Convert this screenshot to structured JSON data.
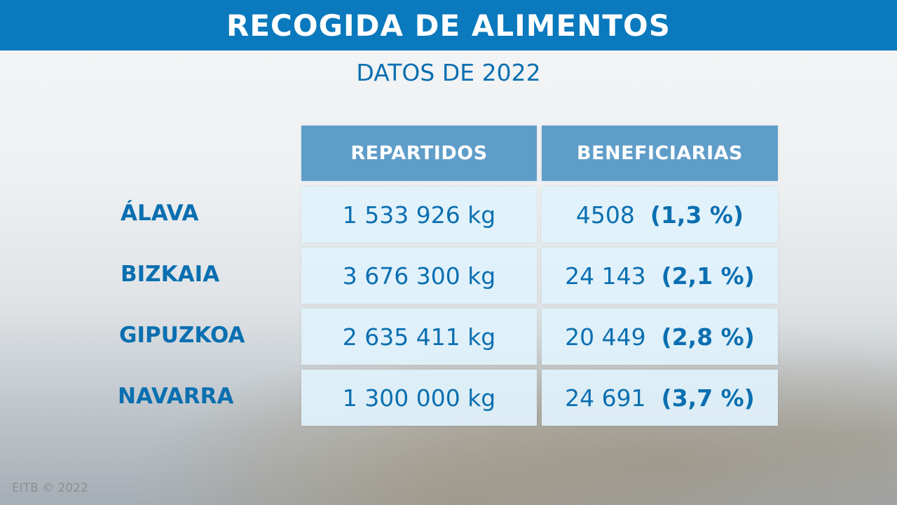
{
  "header": {
    "title": "RECOGIDA DE ALIMENTOS",
    "subtitle": "DATOS DE 2022"
  },
  "colors": {
    "brand_blue": "#0a79bd",
    "header_cell": "#5f9dc9",
    "text_blue": "#0a6fb0",
    "cell_bg": "#e1f2fc"
  },
  "chart_data": {
    "type": "table",
    "title": "RECOGIDA DE ALIMENTOS",
    "subtitle": "DATOS DE 2022",
    "columns": [
      "REPARTIDOS",
      "BENEFICIARIAS"
    ],
    "rows": [
      {
        "label": "ÁLAVA",
        "repartidos": "1 533 926 kg",
        "beneficiarias": "4508",
        "pct": "(1,3 %)"
      },
      {
        "label": "BIZKAIA",
        "repartidos": "3 676 300 kg",
        "beneficiarias": "24 143",
        "pct": "(2,1 %)"
      },
      {
        "label": "GIPUZKOA",
        "repartidos": "2 635 411 kg",
        "beneficiarias": "20 449",
        "pct": "(2,8 %)"
      },
      {
        "label": "NAVARRA",
        "repartidos": "1 300 000 kg",
        "beneficiarias": "24 691",
        "pct": "(3,7 %)"
      }
    ]
  },
  "footer": {
    "credit": "EITB © 2022"
  }
}
